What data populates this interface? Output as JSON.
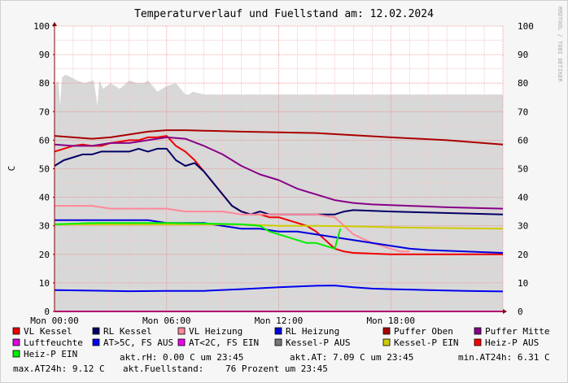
{
  "watermark": "RRDTOOL / TOBI OETIKER",
  "chart_data": {
    "type": "line",
    "title": "Temperaturverlauf und Fuellstand am: 12.02.2024",
    "ylabel": "C",
    "xlabel": "",
    "ylim": [
      0,
      100
    ],
    "xlim": [
      0,
      24
    ],
    "yticks": [
      0,
      10,
      20,
      30,
      40,
      50,
      60,
      70,
      80,
      90,
      100
    ],
    "xticks": [
      {
        "x": 0,
        "label": "Mon 00:00"
      },
      {
        "x": 6,
        "label": "Mon 06:00"
      },
      {
        "x": 12,
        "label": "Mon 12:00"
      },
      {
        "x": 18,
        "label": "Mon 18:00"
      }
    ],
    "grid": true,
    "area_series": {
      "name": "Fuellstand",
      "color": "#d8d8d8",
      "points": [
        [
          0,
          79
        ],
        [
          0.2,
          81
        ],
        [
          0.3,
          72
        ],
        [
          0.4,
          82
        ],
        [
          0.6,
          83
        ],
        [
          1.2,
          81
        ],
        [
          1.6,
          80
        ],
        [
          2.1,
          81
        ],
        [
          2.3,
          72
        ],
        [
          2.4,
          81
        ],
        [
          2.6,
          78
        ],
        [
          3.0,
          80
        ],
        [
          3.5,
          78
        ],
        [
          4.0,
          81
        ],
        [
          4.4,
          80
        ],
        [
          4.8,
          80
        ],
        [
          5.0,
          81
        ],
        [
          5.5,
          77
        ],
        [
          6.0,
          79
        ],
        [
          6.5,
          80
        ],
        [
          7.0,
          76
        ],
        [
          7.2,
          76
        ],
        [
          7.4,
          77
        ],
        [
          8.0,
          76
        ],
        [
          10,
          76
        ],
        [
          15,
          76
        ],
        [
          24,
          76
        ]
      ]
    },
    "series": [
      {
        "name": "VL Kessel",
        "color": "#ee0000",
        "points": [
          [
            0,
            56
          ],
          [
            0.5,
            57
          ],
          [
            1,
            58
          ],
          [
            1.5,
            58.5
          ],
          [
            2,
            58
          ],
          [
            2.5,
            58
          ],
          [
            3,
            59
          ],
          [
            3.5,
            59.5
          ],
          [
            4,
            60
          ],
          [
            4.5,
            60
          ],
          [
            5,
            61
          ],
          [
            5.5,
            61
          ],
          [
            6,
            61.5
          ],
          [
            6.5,
            58
          ],
          [
            7,
            56
          ],
          [
            7.5,
            53
          ],
          [
            8,
            49
          ],
          [
            8.5,
            45
          ],
          [
            9,
            41
          ],
          [
            9.5,
            37
          ],
          [
            10,
            35
          ],
          [
            10.5,
            34
          ],
          [
            11,
            34
          ],
          [
            11.5,
            33
          ],
          [
            12,
            33
          ],
          [
            12.5,
            32
          ],
          [
            13,
            31
          ],
          [
            13.5,
            30
          ],
          [
            14,
            28
          ],
          [
            14.5,
            25
          ],
          [
            15,
            22
          ],
          [
            15.5,
            21
          ],
          [
            16,
            20.5
          ],
          [
            18,
            20
          ],
          [
            24,
            20
          ]
        ]
      },
      {
        "name": "RL Kessel",
        "color": "#000066",
        "points": [
          [
            0,
            51
          ],
          [
            0.5,
            53
          ],
          [
            1,
            54
          ],
          [
            1.5,
            55
          ],
          [
            2,
            55
          ],
          [
            2.5,
            56
          ],
          [
            3,
            56
          ],
          [
            3.5,
            56
          ],
          [
            4,
            56
          ],
          [
            4.5,
            57
          ],
          [
            5,
            56
          ],
          [
            5.5,
            57
          ],
          [
            6,
            57
          ],
          [
            6.5,
            53
          ],
          [
            7,
            51
          ],
          [
            7.5,
            52
          ],
          [
            8,
            49
          ],
          [
            8.5,
            45
          ],
          [
            9,
            41
          ],
          [
            9.5,
            37
          ],
          [
            10,
            35
          ],
          [
            10.5,
            34
          ],
          [
            11,
            35
          ],
          [
            11.5,
            34
          ],
          [
            12,
            34
          ],
          [
            12.5,
            34
          ],
          [
            13,
            34
          ],
          [
            13.5,
            34
          ],
          [
            14,
            34
          ],
          [
            14.5,
            34
          ],
          [
            15,
            34
          ],
          [
            15.5,
            35
          ],
          [
            16,
            35.5
          ],
          [
            18,
            35
          ],
          [
            24,
            34
          ]
        ]
      },
      {
        "name": "VL Heizung",
        "color": "#ff8899",
        "points": [
          [
            0,
            37
          ],
          [
            1,
            37
          ],
          [
            2,
            37
          ],
          [
            3,
            36
          ],
          [
            4,
            36
          ],
          [
            5,
            36
          ],
          [
            6,
            36
          ],
          [
            7,
            35
          ],
          [
            8,
            35
          ],
          [
            9,
            35
          ],
          [
            10,
            34
          ],
          [
            11,
            34
          ],
          [
            12,
            34
          ],
          [
            13,
            34
          ],
          [
            14,
            34
          ],
          [
            15,
            33
          ],
          [
            15.5,
            30
          ],
          [
            16,
            27
          ],
          [
            17,
            24
          ],
          [
            18,
            22
          ],
          [
            18.5,
            21
          ],
          [
            19,
            21
          ]
        ]
      },
      {
        "name": "RL Heizung",
        "color": "#0000dd",
        "points": [
          [
            0,
            32
          ],
          [
            1,
            32
          ],
          [
            2,
            32
          ],
          [
            3,
            32
          ],
          [
            4,
            32
          ],
          [
            5,
            32
          ],
          [
            6,
            31
          ],
          [
            7,
            31
          ],
          [
            8,
            31
          ],
          [
            9,
            30
          ],
          [
            10,
            29
          ],
          [
            11,
            29
          ],
          [
            12,
            28
          ],
          [
            13,
            28
          ],
          [
            14,
            27
          ],
          [
            15,
            26
          ],
          [
            16,
            25
          ],
          [
            17,
            24
          ],
          [
            18,
            23
          ],
          [
            19,
            22
          ],
          [
            20,
            21.5
          ],
          [
            22,
            21
          ],
          [
            24,
            20.5
          ]
        ]
      },
      {
        "name": "Puffer Oben",
        "color": "#aa0000",
        "points": [
          [
            0,
            61.5
          ],
          [
            1,
            61
          ],
          [
            2,
            60.5
          ],
          [
            3,
            61
          ],
          [
            4,
            62
          ],
          [
            5,
            63
          ],
          [
            6,
            63.5
          ],
          [
            7,
            63.5
          ],
          [
            10,
            63
          ],
          [
            14,
            62.5
          ],
          [
            18,
            61
          ],
          [
            21,
            60
          ],
          [
            24,
            58.5
          ]
        ]
      },
      {
        "name": "Puffer Mitte",
        "color": "#880088",
        "points": [
          [
            0,
            58.5
          ],
          [
            1,
            58
          ],
          [
            2,
            58
          ],
          [
            3,
            59
          ],
          [
            4,
            59
          ],
          [
            5,
            60
          ],
          [
            6,
            61
          ],
          [
            7,
            60.5
          ],
          [
            8,
            58
          ],
          [
            9,
            55
          ],
          [
            10,
            51
          ],
          [
            11,
            48
          ],
          [
            12,
            46
          ],
          [
            13,
            43
          ],
          [
            14,
            41
          ],
          [
            15,
            39
          ],
          [
            16,
            38
          ],
          [
            17,
            37.5
          ],
          [
            19,
            37
          ],
          [
            21,
            36.5
          ],
          [
            24,
            36
          ]
        ]
      },
      {
        "name": "Luftfeuchte",
        "color": "#dd00dd",
        "points": [
          [
            0,
            0
          ],
          [
            24,
            0
          ]
        ]
      },
      {
        "name": "AT>5C, FS AUS",
        "color": "#0000ee",
        "points": [
          [
            0,
            7.5
          ],
          [
            2,
            7.3
          ],
          [
            4,
            7.1
          ],
          [
            6,
            7.2
          ],
          [
            8,
            7.2
          ],
          [
            10,
            7.8
          ],
          [
            12,
            8.5
          ],
          [
            14,
            9
          ],
          [
            15,
            9.1
          ],
          [
            16,
            8.5
          ],
          [
            17,
            8
          ],
          [
            18,
            7.8
          ],
          [
            20,
            7.5
          ],
          [
            22,
            7.2
          ],
          [
            24,
            7
          ]
        ]
      },
      {
        "name": "AT<2C, FS EIN",
        "color": "#ee00ee",
        "points": []
      },
      {
        "name": "Kessel-P AUS",
        "color": "#777777",
        "points": []
      },
      {
        "name": "Kessel-P EIN",
        "color": "#cccc00",
        "points": [
          [
            0,
            30.5
          ],
          [
            2,
            30.5
          ],
          [
            4,
            30.5
          ],
          [
            6,
            30.5
          ],
          [
            8,
            30.5
          ],
          [
            10,
            30.5
          ],
          [
            12,
            30
          ],
          [
            14,
            30
          ],
          [
            16,
            29.8
          ],
          [
            18,
            29.5
          ],
          [
            20,
            29.3
          ],
          [
            24,
            29
          ]
        ]
      },
      {
        "name": "Heiz-P AUS",
        "color": "#ff0000",
        "points": []
      },
      {
        "name": "Heiz-P EIN",
        "color": "#00ee00",
        "points": [
          [
            0,
            30.5
          ],
          [
            2,
            31
          ],
          [
            4,
            31
          ],
          [
            6,
            31
          ],
          [
            8,
            30.8
          ],
          [
            10,
            30.5
          ],
          [
            11,
            30
          ],
          [
            11.5,
            28
          ],
          [
            12,
            27
          ],
          [
            12.5,
            26
          ],
          [
            13,
            25
          ],
          [
            13.5,
            24
          ],
          [
            14,
            24
          ],
          [
            14.5,
            23
          ],
          [
            15,
            22
          ],
          [
            15.3,
            29
          ]
        ]
      }
    ]
  },
  "legend": [
    {
      "label": "VL Kessel",
      "color": "#ee0000"
    },
    {
      "label": "RL Kessel",
      "color": "#000066"
    },
    {
      "label": "VL Heizung",
      "color": "#ff8899"
    },
    {
      "label": "RL Heizung",
      "color": "#0000dd"
    },
    {
      "label": "Puffer Oben",
      "color": "#aa0000"
    },
    {
      "label": "Puffer Mitte",
      "color": "#880088"
    },
    {
      "label": "Luftfeuchte",
      "color": "#dd00dd"
    },
    {
      "label": "AT>5C, FS AUS",
      "color": "#0000ee"
    },
    {
      "label": "AT<2C, FS EIN",
      "color": "#ee00ee"
    },
    {
      "label": "Kessel-P AUS",
      "color": "#777777"
    },
    {
      "label": "Kessel-P EIN",
      "color": "#cccc00"
    },
    {
      "label": "Heiz-P AUS",
      "color": "#ff0000"
    },
    {
      "label": "Heiz-P EIN",
      "color": "#00ee00"
    }
  ],
  "stats": {
    "rh": "akt.rH: 0.00 C um 23:45",
    "at": "akt.AT: 7.09 C um 23:45",
    "min": "min.AT24h: 6.31 C",
    "max": "max.AT24h: 9.12 C",
    "fill_label": "akt.Fuellstand:",
    "fill_value": "76 Prozent um 23:45"
  }
}
